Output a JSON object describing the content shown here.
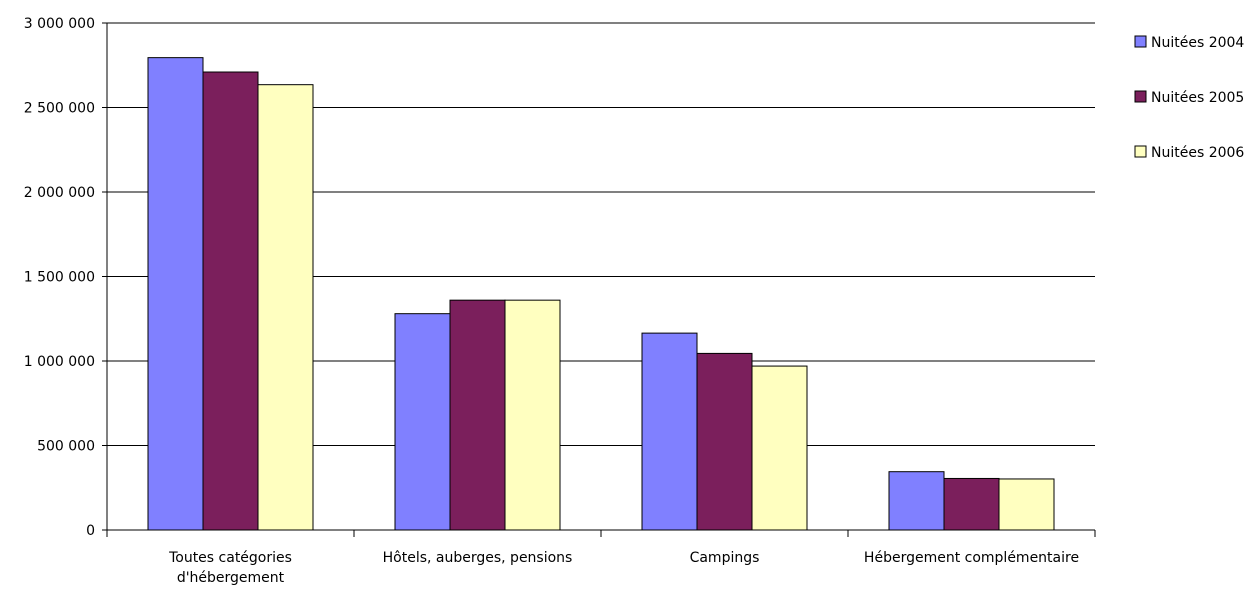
{
  "chart_data": {
    "type": "bar",
    "categories": [
      [
        "Toutes catégories",
        "d'hébergement"
      ],
      [
        "Hôtels, auberges, pensions"
      ],
      [
        "Campings"
      ],
      [
        "Hébergement complémentaire"
      ]
    ],
    "series": [
      {
        "name": "Nuitées 2004",
        "color": "#8080ff",
        "values": [
          2795000,
          1280000,
          1165000,
          345000
        ]
      },
      {
        "name": "Nuitées 2005",
        "color": "#7b1f5c",
        "values": [
          2710000,
          1360000,
          1045000,
          305000
        ]
      },
      {
        "name": "Nuitées 2006",
        "color": "#ffffc0",
        "values": [
          2635000,
          1360000,
          970000,
          302000
        ]
      }
    ],
    "ylim": [
      0,
      3000000
    ],
    "yticks": [
      "0",
      "500 000",
      "1 000 000",
      "1 500 000",
      "2 000 000",
      "2 500 000",
      "3 000 000"
    ],
    "grid": true,
    "legend_position": "right"
  }
}
